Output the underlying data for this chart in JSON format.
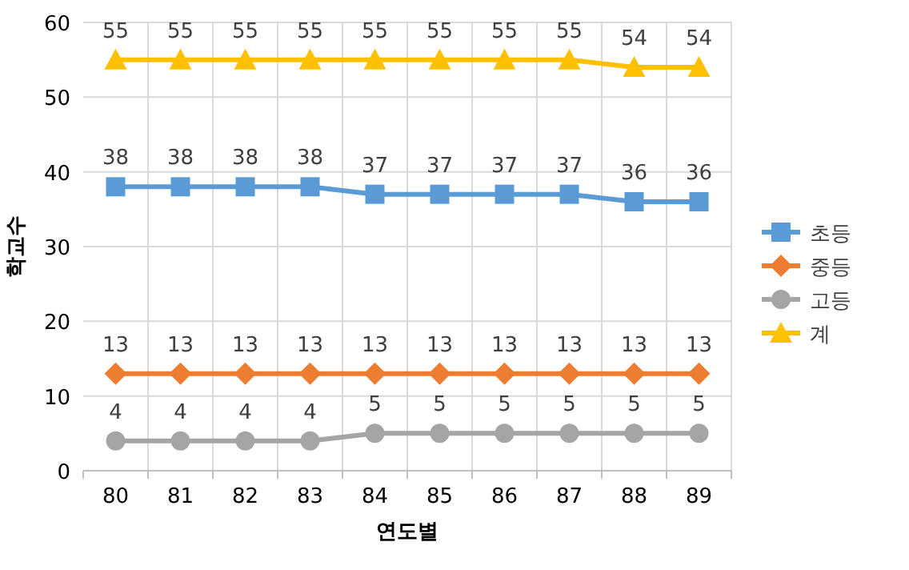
{
  "chart_data": {
    "type": "line",
    "xlabel": "연도별",
    "ylabel": "학교수",
    "categories": [
      "80",
      "81",
      "82",
      "83",
      "84",
      "85",
      "86",
      "87",
      "88",
      "89"
    ],
    "series": [
      {
        "name": "초등",
        "color": "#5b9bd5",
        "marker": "square",
        "values": [
          38,
          38,
          38,
          38,
          37,
          37,
          37,
          37,
          36,
          36
        ]
      },
      {
        "name": "중등",
        "color": "#ed7d31",
        "marker": "diamond",
        "values": [
          13,
          13,
          13,
          13,
          13,
          13,
          13,
          13,
          13,
          13
        ]
      },
      {
        "name": "고등",
        "color": "#a5a5a5",
        "marker": "circle",
        "values": [
          4,
          4,
          4,
          4,
          5,
          5,
          5,
          5,
          5,
          5
        ]
      },
      {
        "name": "계",
        "color": "#ffc000",
        "marker": "triangle",
        "values": [
          55,
          55,
          55,
          55,
          55,
          55,
          55,
          55,
          54,
          54
        ]
      }
    ],
    "ylim": [
      0,
      60
    ],
    "yticks": [
      0,
      10,
      20,
      30,
      40,
      50,
      60
    ],
    "grid": true,
    "legend": "right",
    "data_labels": true
  }
}
